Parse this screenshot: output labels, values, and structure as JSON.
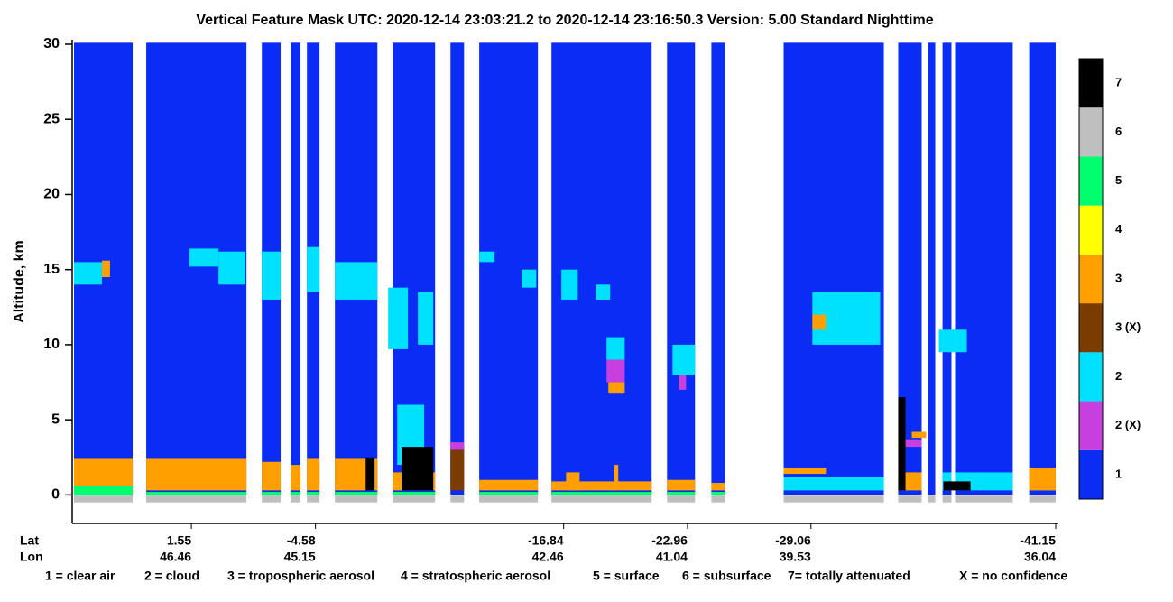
{
  "chart_data": {
    "type": "curtain",
    "title": "Vertical Feature Mask    UTC:  2020-12-14   23:03:21.2  to  2020-12-14   23:16:50.3    Version: 5.00  Standard Nighttime",
    "y_label": "Altitude, km",
    "x_label": "Lat",
    "x2_label": "Lon",
    "xlim": [
      7.35,
      -41.15
    ],
    "xticks": [
      1.55,
      -4.58,
      -16.84,
      -22.96,
      -29.06,
      -41.15
    ],
    "x2_ticklabels": [
      46.46,
      45.15,
      42.46,
      41.04,
      39.53,
      36.04
    ],
    "ylim": [
      -1.9,
      30.3
    ],
    "yticks": [
      0,
      5,
      10,
      15,
      20,
      25,
      30
    ],
    "key": [
      "1 = clear air",
      "2 = cloud",
      "3 = tropospheric aerosol",
      "4 = stratospheric aerosol",
      "5 = surface",
      "6 = subsurface",
      "7= totally attenuated",
      "X = no confidence"
    ],
    "series": [
      {
        "name": "1",
        "color": "#0a2cf5",
        "blocks": [
          [
            7.35,
            4.45,
            0,
            30.1
          ],
          [
            3.78,
            -1.17,
            0,
            30.1
          ],
          [
            -1.93,
            -2.86,
            0,
            30.1
          ],
          [
            -3.35,
            -3.84,
            0,
            30.1
          ],
          [
            -4.16,
            -4.78,
            0,
            30.1
          ],
          [
            -5.54,
            -7.64,
            0,
            30.1
          ],
          [
            -8.39,
            -10.49,
            0,
            30.1
          ],
          [
            -11.25,
            -11.92,
            0,
            30.1
          ],
          [
            -12.67,
            -15.57,
            0,
            30.1
          ],
          [
            -16.24,
            -21.19,
            0,
            30.1
          ],
          [
            -21.95,
            -23.33,
            0,
            30.1
          ],
          [
            -24.14,
            -24.81,
            0,
            30.1
          ],
          [
            -27.71,
            -32.66,
            0,
            30.1
          ],
          [
            -33.37,
            -34.53,
            0,
            30.1
          ],
          [
            -34.84,
            -35.2,
            0,
            30.1
          ],
          [
            -35.56,
            -36.0,
            0,
            30.1
          ],
          [
            -36.18,
            -39.03,
            0,
            30.1
          ],
          [
            -39.84,
            -41.15,
            0,
            30.1
          ]
        ]
      },
      {
        "name": "2 (X)",
        "color": "#c83fe0",
        "blocks": [
          [
            -18.96,
            -19.86,
            7.5,
            9
          ],
          [
            -22.53,
            -22.89,
            7,
            8
          ],
          [
            -11.25,
            -11.92,
            3,
            3.5
          ],
          [
            -33.59,
            -34.53,
            3.2,
            3.7
          ]
        ]
      },
      {
        "name": "2",
        "color": "#00e0ff",
        "blocks": [
          [
            7.35,
            5.97,
            14,
            15.5
          ],
          [
            1.64,
            0.21,
            15.2,
            16.4
          ],
          [
            0.21,
            -1.12,
            14,
            16.2
          ],
          [
            -1.93,
            -2.86,
            13,
            16.2
          ],
          [
            -4.16,
            -4.78,
            13.5,
            16.5
          ],
          [
            -5.54,
            -7.64,
            13,
            15.5
          ],
          [
            -8.17,
            -9.15,
            9.7,
            13.8
          ],
          [
            -9.64,
            -10.4,
            10,
            13.5
          ],
          [
            -13.43,
            -12.67,
            15.5,
            16.2
          ],
          [
            -14.77,
            -15.49,
            13.8,
            15
          ],
          [
            -16.73,
            -17.54,
            13,
            15
          ],
          [
            -18.43,
            -19.14,
            13,
            14
          ],
          [
            -18.96,
            -19.86,
            9,
            10.5
          ],
          [
            -22.22,
            -23.33,
            8,
            10
          ],
          [
            -29.13,
            -32.48,
            10,
            13.5
          ],
          [
            -35.38,
            -36.76,
            9.5,
            11
          ],
          [
            -8.62,
            -9.95,
            2,
            6
          ],
          [
            -27.71,
            -32.66,
            0.3,
            1.2
          ],
          [
            -35.56,
            -36.0,
            0.3,
            1.5
          ],
          [
            -36.18,
            -39.03,
            0.3,
            1.5
          ],
          [
            -39.84,
            -41.15,
            0.3,
            1.2
          ]
        ]
      },
      {
        "name": "3 (X)",
        "color": "#7a3c00",
        "blocks": [
          [
            -11.25,
            -11.92,
            0.3,
            3.0
          ]
        ]
      },
      {
        "name": "3",
        "color": "#ff9f00",
        "blocks": [
          [
            7.35,
            4.45,
            0.3,
            2.4
          ],
          [
            3.78,
            -1.17,
            0.3,
            2.4
          ],
          [
            -1.93,
            -2.86,
            0.3,
            2.2
          ],
          [
            -3.35,
            -3.84,
            0.3,
            2.0
          ],
          [
            -4.16,
            -4.78,
            0.3,
            2.4
          ],
          [
            -5.54,
            -7.64,
            0.3,
            2.4
          ],
          [
            -8.39,
            -10.49,
            0.3,
            1.5
          ],
          [
            -12.67,
            -15.57,
            0.3,
            1.0
          ],
          [
            -16.24,
            -21.19,
            0.3,
            0.9
          ],
          [
            -16.96,
            -17.63,
            0.3,
            1.5
          ],
          [
            -19.32,
            -19.54,
            0.3,
            2.0
          ],
          [
            -21.95,
            -23.33,
            0.3,
            1.0
          ],
          [
            -24.14,
            -24.81,
            0.3,
            0.8
          ],
          [
            -27.71,
            -29.8,
            1.4,
            1.8
          ],
          [
            -33.37,
            -34.53,
            0.3,
            1.5
          ],
          [
            -39.84,
            -41.15,
            0.3,
            1.8
          ],
          [
            5.97,
            5.57,
            14.5,
            15.6
          ],
          [
            -19.05,
            -19.86,
            6.8,
            7.5
          ],
          [
            -29.13,
            -29.8,
            11,
            12
          ],
          [
            -34.04,
            -34.75,
            3.8,
            4.2
          ]
        ]
      },
      {
        "name": "4",
        "color": "#ffff00",
        "blocks": []
      },
      {
        "name": "5",
        "color": "#00ff6e",
        "blocks": [
          [
            7.35,
            4.45,
            -0.05,
            0.6
          ],
          [
            3.78,
            -1.17,
            -0.05,
            0.2
          ],
          [
            -1.93,
            -2.86,
            -0.05,
            0.2
          ],
          [
            -3.35,
            -3.84,
            -0.05,
            0.2
          ],
          [
            -4.16,
            -4.78,
            -0.05,
            0.2
          ],
          [
            -5.54,
            -7.64,
            -0.05,
            0.2
          ],
          [
            -8.39,
            -10.49,
            -0.05,
            0.2
          ],
          [
            -12.67,
            -15.57,
            -0.05,
            0.2
          ],
          [
            -16.24,
            -21.19,
            -0.05,
            0.2
          ],
          [
            -21.95,
            -23.33,
            -0.05,
            0.2
          ],
          [
            -24.14,
            -24.81,
            -0.05,
            0.2
          ]
        ]
      },
      {
        "name": "6",
        "color": "#bfbfbf",
        "blocks": [
          [
            7.35,
            4.45,
            -0.5,
            -0.05
          ],
          [
            3.78,
            -1.17,
            -0.5,
            -0.05
          ],
          [
            -1.93,
            -2.86,
            -0.5,
            -0.05
          ],
          [
            -3.35,
            -3.84,
            -0.5,
            -0.05
          ],
          [
            -4.16,
            -4.78,
            -0.5,
            -0.05
          ],
          [
            -5.54,
            -7.64,
            -0.5,
            -0.05
          ],
          [
            -8.39,
            -10.49,
            -0.5,
            -0.05
          ],
          [
            -11.25,
            -11.92,
            -0.5,
            -0.05
          ],
          [
            -12.67,
            -15.57,
            -0.5,
            -0.05
          ],
          [
            -16.24,
            -21.19,
            -0.5,
            -0.05
          ],
          [
            -21.95,
            -23.33,
            -0.5,
            -0.05
          ],
          [
            -24.14,
            -24.81,
            -0.5,
            -0.05
          ],
          [
            -27.71,
            -32.66,
            -0.5,
            -0.05
          ],
          [
            -33.37,
            -34.53,
            -0.5,
            -0.05
          ],
          [
            -34.84,
            -35.2,
            -0.5,
            -0.05
          ],
          [
            -35.56,
            -36.0,
            -0.5,
            -0.05
          ],
          [
            -36.18,
            -39.03,
            -0.5,
            -0.05
          ],
          [
            -39.84,
            -41.15,
            -0.5,
            -0.05
          ]
        ]
      },
      {
        "name": "7",
        "color": "#000000",
        "blocks": [
          [
            -8.84,
            -10.4,
            0.3,
            3.2
          ],
          [
            -7.06,
            -7.5,
            0.3,
            2.5
          ],
          [
            -33.37,
            -33.73,
            0.3,
            6.5
          ],
          [
            -35.6,
            -36.94,
            0.3,
            0.9
          ]
        ]
      }
    ]
  }
}
